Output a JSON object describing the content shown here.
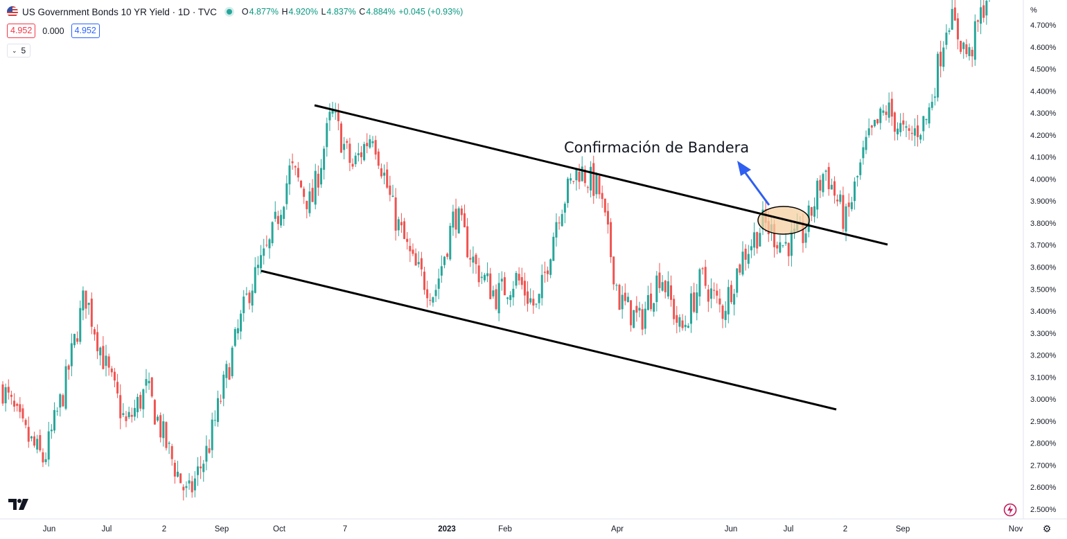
{
  "header": {
    "symbol": "US Government Bonds 10 YR Yield · 1D · TVC",
    "open_label": "O",
    "open": "4.877%",
    "high_label": "H",
    "high": "4.920%",
    "low_label": "L",
    "low": "4.837%",
    "close_label": "C",
    "close": "4.884%",
    "change": "+0.045 (+0.93%)",
    "sell_price": "4.952",
    "spread": "0.000",
    "buy_price": "4.952",
    "indicator_count": "5"
  },
  "colors": {
    "up": "#26a69a",
    "down": "#ef5350",
    "arrow": "#2f5ff0",
    "ellipse_fill": "#f6cfa0"
  },
  "icons": {
    "flag": "us-flag-icon",
    "logo": "tradingview-logo-icon",
    "settings": "gear-icon",
    "alert": "lightning-icon"
  },
  "price_axis_unit": "%",
  "chart_data": {
    "type": "candlestick",
    "y_unit": "%",
    "ylim": [
      2.45,
      4.88
    ],
    "y_ticks": [
      "2.500%",
      "2.600%",
      "2.700%",
      "2.800%",
      "2.900%",
      "3.000%",
      "3.100%",
      "3.200%",
      "3.300%",
      "3.400%",
      "3.500%",
      "3.600%",
      "3.700%",
      "3.800%",
      "3.900%",
      "4.000%",
      "4.100%",
      "4.200%",
      "4.300%",
      "4.400%",
      "4.500%",
      "4.600%",
      "4.700%"
    ],
    "x_ticks": [
      "Jun",
      "Jul",
      "2",
      "Sep",
      "Oct",
      "7",
      "2023",
      "Feb",
      "Apr",
      "Jun",
      "Jul",
      "2",
      "Sep",
      "Nov"
    ],
    "close_path": [
      3.05,
      2.85,
      2.72,
      3.05,
      3.48,
      3.15,
      2.88,
      3.05,
      2.78,
      2.55,
      2.78,
      3.15,
      3.5,
      3.7,
      4.05,
      3.88,
      4.3,
      4.05,
      4.22,
      3.85,
      3.6,
      3.48,
      3.85,
      3.6,
      3.47,
      3.55,
      3.4,
      3.85,
      4.05,
      3.95,
      3.45,
      3.35,
      3.58,
      3.3,
      3.55,
      3.4,
      3.65,
      3.8,
      3.7,
      3.75,
      4.05,
      3.8,
      4.15,
      4.32,
      4.18,
      4.28,
      4.75,
      4.55,
      4.88
    ],
    "annotations": [
      {
        "type": "text",
        "text": "Confirmación de Bandera"
      },
      {
        "type": "trendline",
        "role": "upper-channel",
        "from": [
          "Oct",
          4.33
        ],
        "to": [
          "Jul",
          3.71
        ]
      },
      {
        "type": "trendline",
        "role": "lower-channel",
        "from": [
          "Sep",
          3.59
        ],
        "to": [
          "Jul",
          2.96
        ]
      },
      {
        "type": "arrow",
        "role": "pointer"
      },
      {
        "type": "ellipse",
        "role": "breakout-highlight"
      }
    ]
  }
}
